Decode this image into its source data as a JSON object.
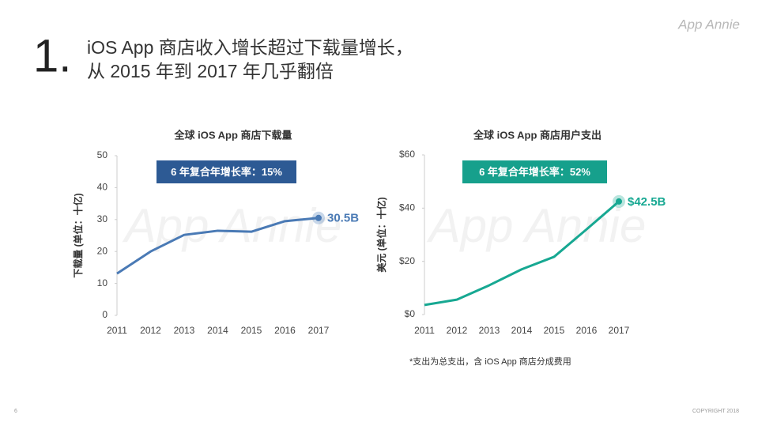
{
  "page": {
    "number": "1.",
    "title_lines": [
      "iOS App 商店收入增长超过下载量增长，",
      "从 2015 年到 2017 年几乎翻倍"
    ],
    "logo": "App Annie",
    "watermark": "App Annie",
    "page_number": "6",
    "copyright": "COPYRIGHT 2018",
    "footnote": "*支出为总支出，含 iOS App 商店分成费用"
  },
  "chart_data": [
    {
      "type": "line",
      "title": "全球 iOS App 商店下载量",
      "y_label": "下载量 (单位：十亿)",
      "annotation": "6 年复合年增长率：15%",
      "categories": [
        "2011",
        "2012",
        "2013",
        "2014",
        "2015",
        "2016",
        "2017"
      ],
      "values": [
        13.1,
        20,
        25.2,
        26.5,
        26.2,
        29.5,
        30.5
      ],
      "value_labels": [
        null,
        null,
        null,
        null,
        null,
        null,
        "30.5B"
      ],
      "color": "#4a7ab5",
      "annotation_color": "#2d5a94",
      "ylim": [
        0,
        50
      ],
      "yticks": [
        0,
        10,
        20,
        30,
        40,
        50
      ]
    },
    {
      "type": "line",
      "title": "全球 iOS App 商店用户支出",
      "y_label": "美元 (单位：十亿)",
      "annotation": "6 年复合年增长率：52%",
      "categories": [
        "2011",
        "2012",
        "2013",
        "2014",
        "2015",
        "2016",
        "2017"
      ],
      "values": [
        3.6,
        5.6,
        11,
        17,
        21.7,
        32,
        42.5
      ],
      "value_labels": [
        null,
        null,
        null,
        null,
        null,
        null,
        "$42.5B"
      ],
      "color": "#17a892",
      "annotation_color": "#16a08c",
      "ylim": [
        0,
        60
      ],
      "yticks": [
        {
          "value": 0,
          "label": "$0"
        },
        {
          "value": 20,
          "label": "$20"
        },
        {
          "value": 40,
          "label": "$40"
        },
        {
          "value": 60,
          "label": "$60"
        }
      ]
    }
  ]
}
